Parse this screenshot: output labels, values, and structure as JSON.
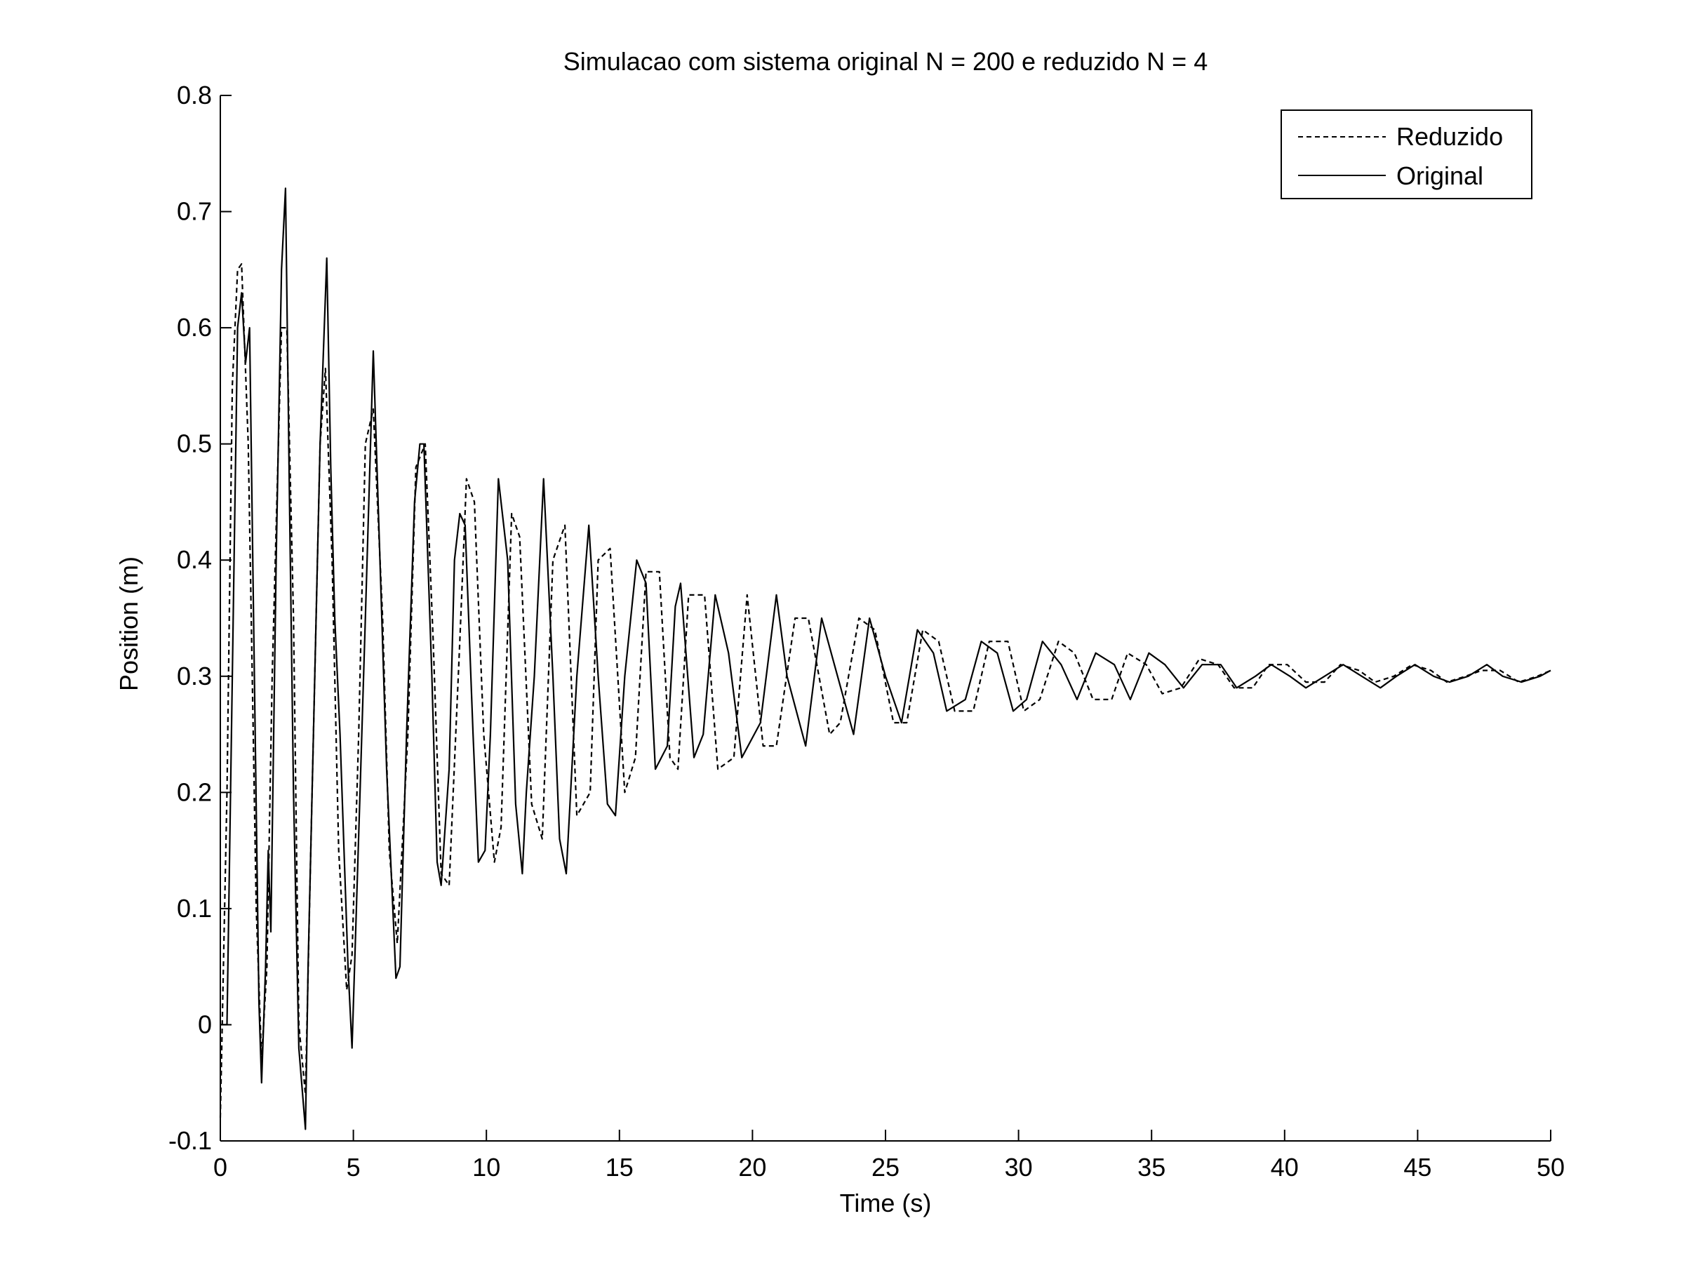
{
  "chart_data": {
    "type": "line",
    "title": "Simulacao com sistema original N = 200 e reduzido N = 4",
    "xlabel": "Time (s)",
    "ylabel": "Position (m)",
    "xlim": [
      0,
      50
    ],
    "ylim": [
      -0.1,
      0.8
    ],
    "xticks": [
      0,
      5,
      10,
      15,
      20,
      25,
      30,
      35,
      40,
      45,
      50
    ],
    "yticks": [
      -0.1,
      0,
      0.1,
      0.2,
      0.3,
      0.4,
      0.5,
      0.6,
      0.7,
      0.8
    ],
    "xtick_labels": [
      "0",
      "5",
      "10",
      "15",
      "20",
      "25",
      "30",
      "35",
      "40",
      "45",
      "50"
    ],
    "ytick_labels": [
      "-0.1",
      "0",
      "0.1",
      "0.2",
      "0.3",
      "0.4",
      "0.5",
      "0.6",
      "0.7",
      "0.8"
    ],
    "grid": false,
    "legend_position": "top-right",
    "series": [
      {
        "name": "Reduzido",
        "style": "dashed",
        "color": "#000000",
        "x": [
          0,
          0.25,
          0.45,
          0.65,
          0.8,
          1.05,
          1.35,
          1.55,
          1.75,
          1.95,
          2.3,
          2.5,
          2.75,
          2.95,
          3.2,
          3.4,
          3.75,
          3.95,
          4.2,
          4.45,
          4.75,
          4.95,
          5.2,
          5.45,
          5.75,
          6.1,
          6.35,
          6.65,
          7.05,
          7.35,
          7.7,
          8.0,
          8.3,
          8.6,
          9.0,
          9.25,
          9.55,
          9.9,
          10.3,
          10.55,
          10.95,
          11.25,
          11.7,
          12.1,
          12.5,
          12.95,
          13.4,
          13.9,
          14.2,
          14.65,
          15.2,
          15.6,
          16.0,
          16.5,
          16.9,
          17.2,
          17.6,
          18.2,
          18.7,
          19.3,
          19.8,
          20.4,
          20.9,
          21.6,
          22.1,
          22.9,
          23.3,
          24.0,
          24.6,
          25.3,
          25.8,
          26.4,
          27.0,
          27.6,
          28.3,
          28.9,
          29.6,
          30.2,
          30.8,
          31.5,
          32.1,
          32.8,
          33.5,
          34.1,
          34.8,
          35.4,
          36.1,
          36.8,
          37.5,
          38.1,
          38.8,
          39.4,
          40.1,
          40.8,
          41.5,
          42.1,
          42.8,
          43.4,
          44.1,
          44.8,
          45.5,
          46.1,
          46.8,
          47.4,
          48.1,
          48.8,
          49.5,
          50.0
        ],
        "y": [
          -0.08,
          0.2,
          0.55,
          0.65,
          0.655,
          0.5,
          0.1,
          -0.03,
          0.05,
          0.3,
          0.6,
          0.6,
          0.35,
          0.0,
          -0.06,
          0.15,
          0.5,
          0.565,
          0.4,
          0.15,
          0.03,
          0.06,
          0.25,
          0.5,
          0.53,
          0.35,
          0.15,
          0.07,
          0.25,
          0.48,
          0.5,
          0.33,
          0.13,
          0.12,
          0.33,
          0.47,
          0.45,
          0.25,
          0.14,
          0.17,
          0.44,
          0.42,
          0.19,
          0.16,
          0.4,
          0.43,
          0.18,
          0.2,
          0.4,
          0.41,
          0.2,
          0.23,
          0.39,
          0.39,
          0.23,
          0.22,
          0.37,
          0.37,
          0.22,
          0.23,
          0.37,
          0.24,
          0.24,
          0.35,
          0.35,
          0.25,
          0.26,
          0.35,
          0.34,
          0.26,
          0.26,
          0.34,
          0.33,
          0.27,
          0.27,
          0.33,
          0.33,
          0.27,
          0.28,
          0.33,
          0.32,
          0.28,
          0.28,
          0.32,
          0.31,
          0.285,
          0.29,
          0.315,
          0.31,
          0.29,
          0.29,
          0.31,
          0.31,
          0.295,
          0.295,
          0.31,
          0.305,
          0.295,
          0.3,
          0.31,
          0.305,
          0.295,
          0.3,
          0.305,
          0.305,
          0.295,
          0.3,
          0.305
        ]
      },
      {
        "name": "Original",
        "style": "solid",
        "color": "#000000",
        "x": [
          0,
          0.1,
          0.25,
          0.45,
          0.65,
          0.8,
          0.95,
          1.1,
          1.25,
          1.45,
          1.55,
          1.7,
          1.8,
          1.9,
          2.1,
          2.3,
          2.45,
          2.6,
          2.75,
          2.95,
          3.2,
          3.3,
          3.5,
          3.75,
          4.0,
          4.15,
          4.3,
          4.5,
          4.8,
          4.95,
          5.25,
          5.45,
          5.75,
          6.0,
          6.25,
          6.6,
          6.75,
          7.0,
          7.3,
          7.5,
          7.65,
          7.95,
          8.15,
          8.3,
          8.6,
          8.8,
          9.0,
          9.2,
          9.5,
          9.7,
          9.95,
          10.15,
          10.45,
          10.8,
          11.1,
          11.35,
          11.5,
          11.8,
          12.15,
          12.5,
          12.75,
          13.0,
          13.4,
          13.85,
          14.2,
          14.55,
          14.85,
          15.2,
          15.65,
          16.0,
          16.35,
          16.8,
          17.1,
          17.3,
          17.8,
          18.15,
          18.6,
          19.1,
          19.6,
          20.3,
          20.9,
          21.3,
          22.0,
          22.6,
          23.2,
          23.8,
          24.4,
          25.0,
          25.6,
          26.2,
          26.8,
          27.3,
          28.0,
          28.6,
          29.2,
          29.8,
          30.3,
          30.9,
          31.6,
          32.2,
          32.9,
          33.6,
          34.2,
          34.9,
          35.5,
          36.2,
          36.9,
          37.6,
          38.2,
          38.9,
          39.5,
          40.2,
          40.8,
          41.5,
          42.2,
          42.9,
          43.6,
          44.2,
          44.9,
          45.6,
          46.2,
          46.9,
          47.6,
          48.2,
          48.9,
          49.6,
          50.0
        ],
        "y": [
          0.0,
          0.0,
          0.0,
          0.3,
          0.6,
          0.63,
          0.57,
          0.6,
          0.35,
          0.02,
          -0.05,
          0.05,
          0.15,
          0.08,
          0.4,
          0.65,
          0.72,
          0.45,
          0.2,
          -0.02,
          -0.09,
          0.05,
          0.25,
          0.5,
          0.66,
          0.48,
          0.35,
          0.25,
          0.05,
          -0.02,
          0.2,
          0.35,
          0.58,
          0.4,
          0.22,
          0.04,
          0.05,
          0.25,
          0.45,
          0.5,
          0.5,
          0.3,
          0.14,
          0.12,
          0.22,
          0.4,
          0.44,
          0.43,
          0.25,
          0.14,
          0.15,
          0.25,
          0.47,
          0.4,
          0.19,
          0.13,
          0.2,
          0.3,
          0.47,
          0.3,
          0.16,
          0.13,
          0.3,
          0.43,
          0.3,
          0.19,
          0.18,
          0.3,
          0.4,
          0.38,
          0.22,
          0.24,
          0.36,
          0.38,
          0.23,
          0.25,
          0.37,
          0.32,
          0.23,
          0.26,
          0.37,
          0.3,
          0.24,
          0.35,
          0.3,
          0.25,
          0.35,
          0.3,
          0.26,
          0.34,
          0.32,
          0.27,
          0.28,
          0.33,
          0.32,
          0.27,
          0.28,
          0.33,
          0.31,
          0.28,
          0.32,
          0.31,
          0.28,
          0.32,
          0.31,
          0.29,
          0.31,
          0.31,
          0.29,
          0.3,
          0.31,
          0.3,
          0.29,
          0.3,
          0.31,
          0.3,
          0.29,
          0.3,
          0.31,
          0.3,
          0.295,
          0.3,
          0.31,
          0.3,
          0.295,
          0.3,
          0.305
        ]
      }
    ]
  }
}
